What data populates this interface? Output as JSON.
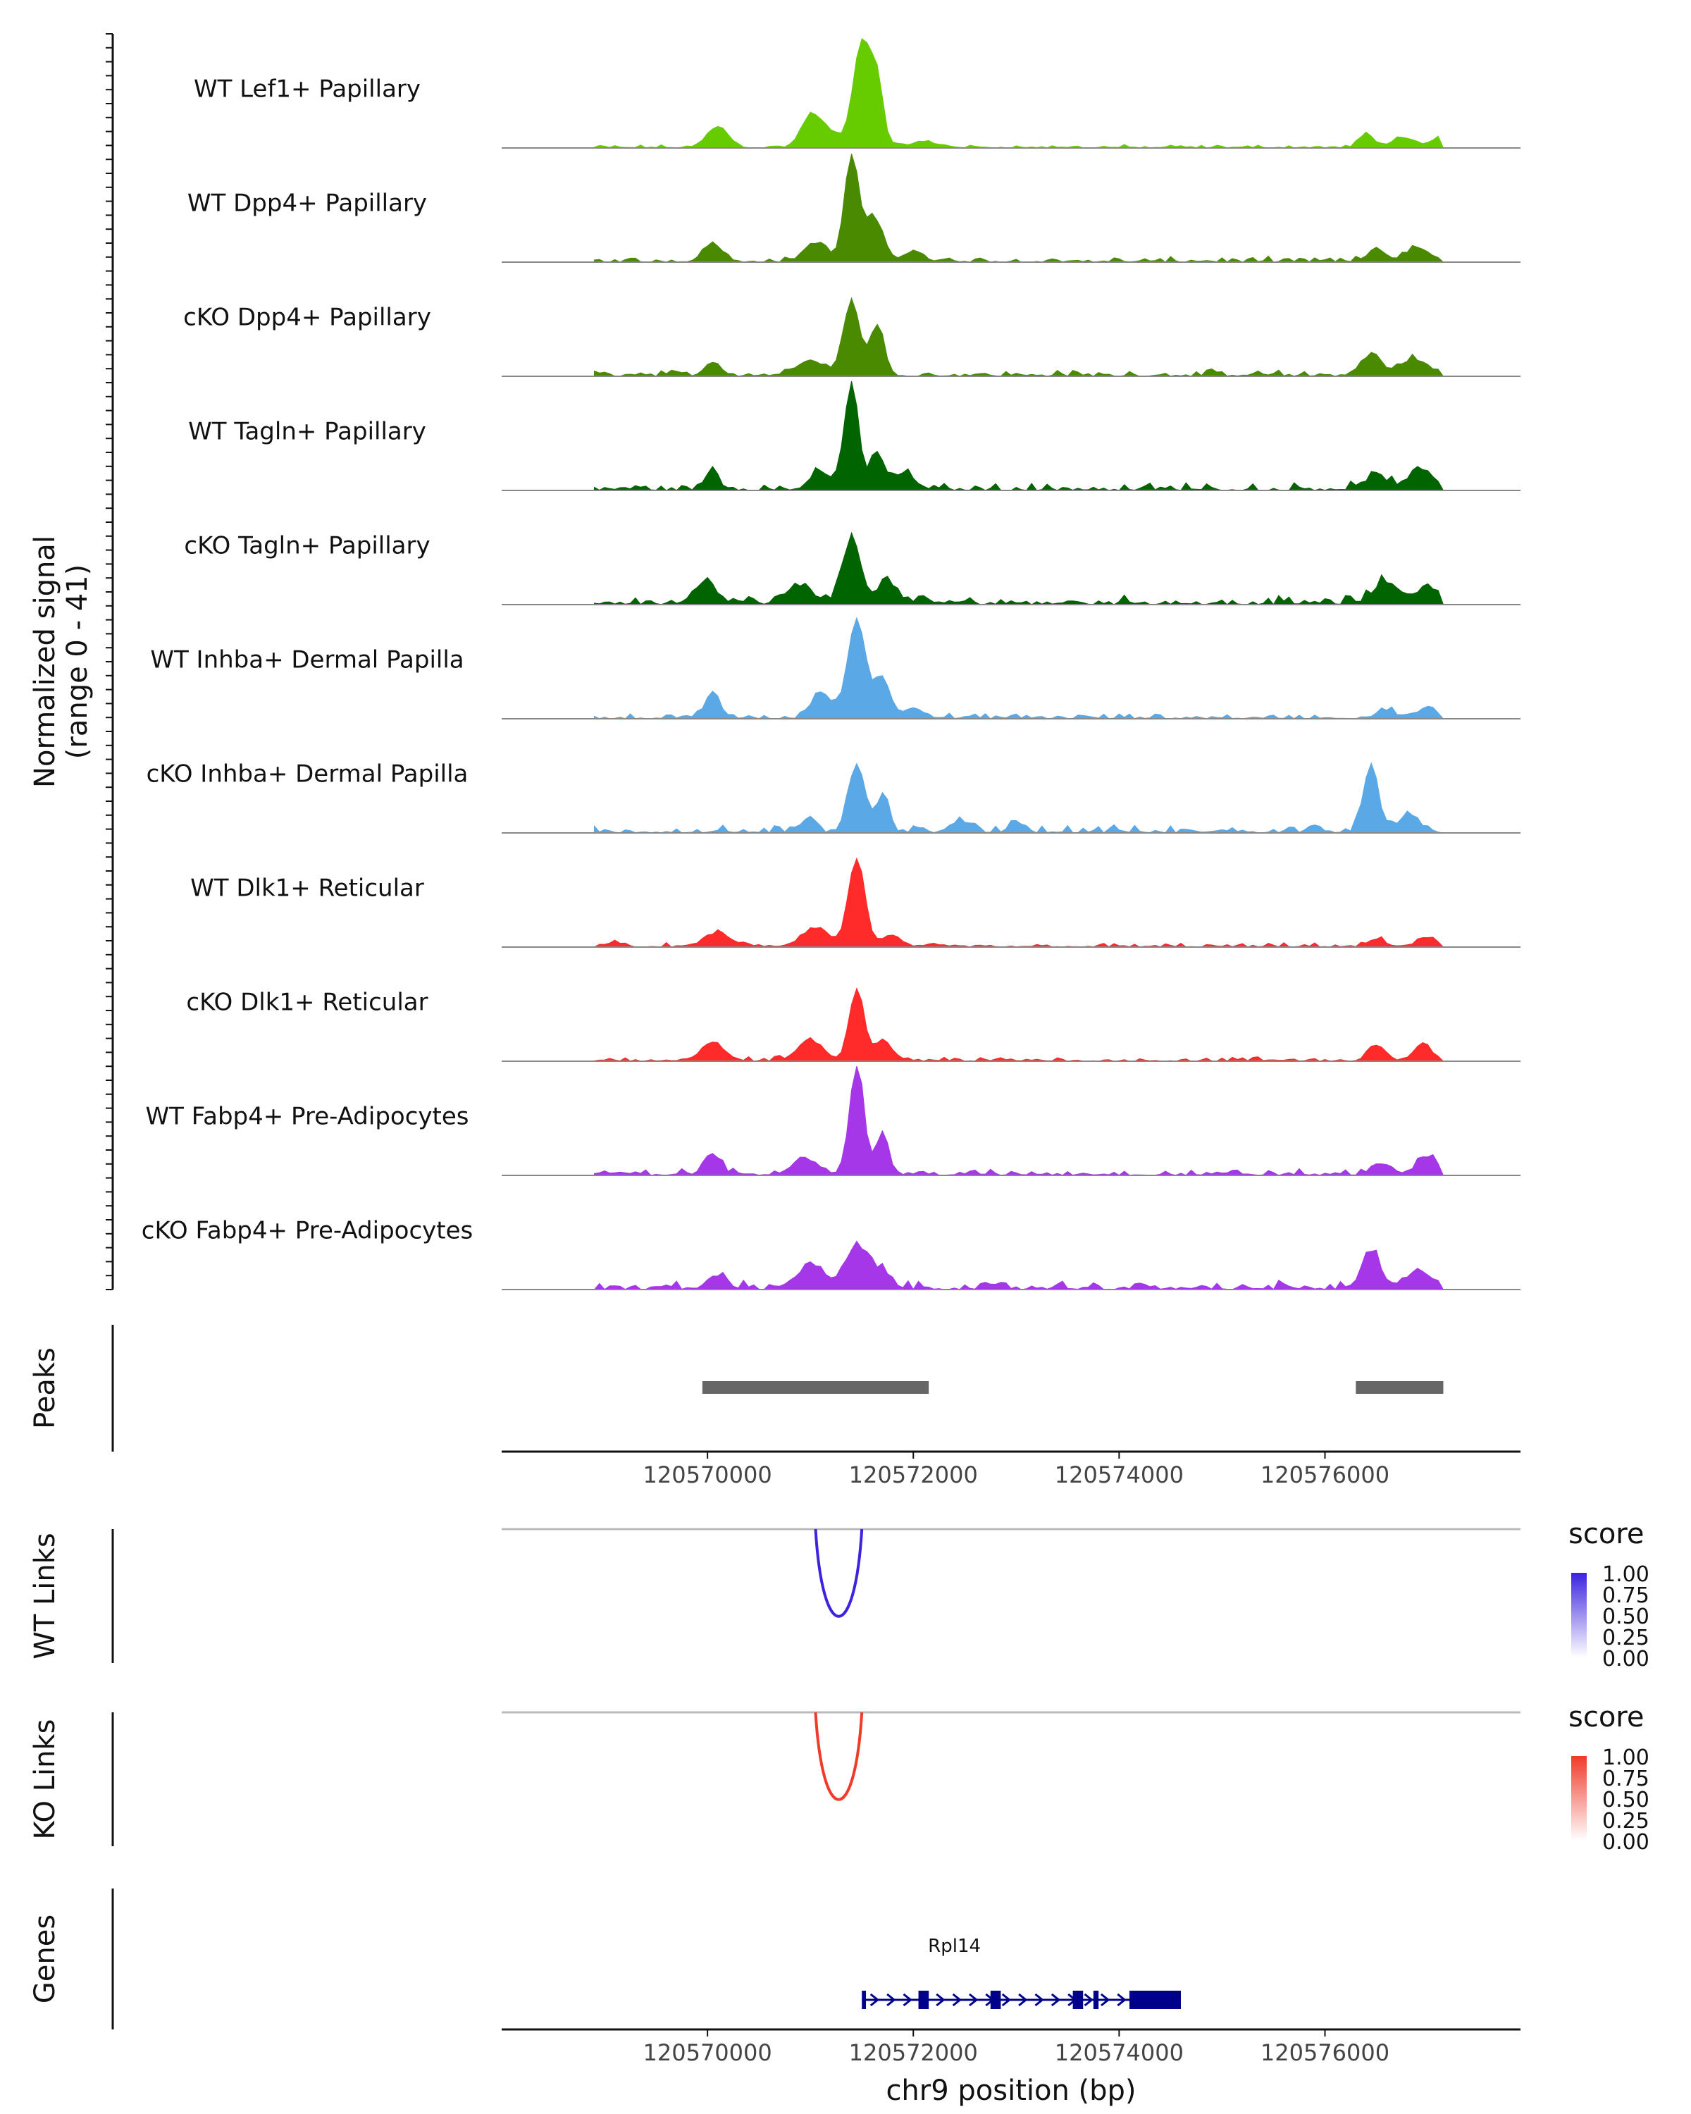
{
  "chart_data": {
    "type": "area",
    "region": "chr9",
    "xlim": [
      120568000,
      120577900
    ],
    "x_ticks": [
      120570000,
      120572000,
      120574000,
      120576000
    ],
    "x_tick_labels": [
      "120570000",
      "120572000",
      "120574000",
      "120576000"
    ],
    "xlabel": "chr9 position (bp)",
    "coverage": {
      "ylabel_line1": "Normalized signal",
      "ylabel_line2": "(range 0 - 41)",
      "ylim": [
        0,
        41
      ],
      "x_start": 120568000,
      "x_step": 50,
      "tracks": [
        {
          "name": "WT Lef1+ Papillary",
          "color": "#66cc00",
          "peaks": [
            [
              120570100,
              8,
              100
            ],
            [
              120571000,
              9,
              90
            ],
            [
              120571150,
              6,
              150
            ],
            [
              120571500,
              40,
              80
            ],
            [
              120571650,
              24,
              60
            ],
            [
              120572100,
              2,
              150
            ],
            [
              120576400,
              5,
              70
            ],
            [
              120576750,
              4,
              100
            ],
            [
              120577100,
              4,
              60
            ]
          ],
          "noise": 0.5
        },
        {
          "name": "WT Dpp4+ Papillary",
          "color": "#4a8a00",
          "peaks": [
            [
              120570050,
              7,
              90
            ],
            [
              120571050,
              7,
              110
            ],
            [
              120571400,
              39,
              70
            ],
            [
              120571620,
              16,
              90
            ],
            [
              120572000,
              4,
              90
            ],
            [
              120576500,
              5,
              80
            ],
            [
              120576900,
              5,
              120
            ]
          ],
          "noise": 0.8
        },
        {
          "name": "cKO Dpp4+ Papillary",
          "color": "#4a8a00",
          "peaks": [
            [
              120570050,
              5,
              80
            ],
            [
              120571000,
              6,
              130
            ],
            [
              120571400,
              28,
              80
            ],
            [
              120571650,
              18,
              70
            ],
            [
              120576450,
              8,
              90
            ],
            [
              120576850,
              6,
              140
            ]
          ],
          "noise": 1.0
        },
        {
          "name": "WT Tagln+ Papillary",
          "color": "#006400",
          "peaks": [
            [
              120570050,
              8,
              60
            ],
            [
              120571100,
              6,
              100
            ],
            [
              120571400,
              40,
              70
            ],
            [
              120571650,
              14,
              60
            ],
            [
              120571900,
              6,
              110
            ],
            [
              120576500,
              5,
              120
            ],
            [
              120576950,
              7,
              120
            ]
          ],
          "noise": 1.2
        },
        {
          "name": "cKO Tagln+ Papillary",
          "color": "#006400",
          "peaks": [
            [
              120569980,
              8,
              110
            ],
            [
              120570900,
              6,
              130
            ],
            [
              120571400,
              24,
              90
            ],
            [
              120571750,
              8,
              100
            ],
            [
              120576600,
              8,
              130
            ],
            [
              120577000,
              6,
              110
            ]
          ],
          "noise": 1.4
        },
        {
          "name": "WT Inhba+ Dermal Papilla",
          "color": "#5aa9e6",
          "peaks": [
            [
              120570050,
              10,
              70
            ],
            [
              120571100,
              10,
              90
            ],
            [
              120571450,
              37,
              90
            ],
            [
              120571700,
              15,
              70
            ],
            [
              120572000,
              4,
              100
            ],
            [
              120576600,
              3,
              90
            ],
            [
              120577000,
              4,
              80
            ]
          ],
          "noise": 0.8
        },
        {
          "name": "cKO Inhba+ Dermal Papilla",
          "color": "#5aa9e6",
          "peaks": [
            [
              120571000,
              6,
              60
            ],
            [
              120571450,
              26,
              80
            ],
            [
              120571700,
              14,
              60
            ],
            [
              120572500,
              4,
              80
            ],
            [
              120573000,
              4,
              70
            ],
            [
              120575900,
              3,
              60
            ],
            [
              120576450,
              26,
              70
            ],
            [
              120576800,
              6,
              90
            ]
          ],
          "noise": 1.2
        },
        {
          "name": "WT Dlk1+ Reticular",
          "color": "#ff2a2a",
          "peaks": [
            [
              120569100,
              2,
              60
            ],
            [
              120570100,
              5,
              130
            ],
            [
              120571050,
              7,
              130
            ],
            [
              120571450,
              33,
              80
            ],
            [
              120571800,
              4,
              90
            ],
            [
              120576500,
              3,
              70
            ],
            [
              120577000,
              3,
              110
            ]
          ],
          "noise": 0.6
        },
        {
          "name": "cKO Dlk1+ Reticular",
          "color": "#ff2a2a",
          "peaks": [
            [
              120570050,
              7,
              110
            ],
            [
              120571000,
              7,
              130
            ],
            [
              120571450,
              27,
              70
            ],
            [
              120571700,
              7,
              90
            ],
            [
              120576500,
              6,
              80
            ],
            [
              120576950,
              6,
              90
            ]
          ],
          "noise": 0.7
        },
        {
          "name": "WT Fabp4+ Pre-Adipocytes",
          "color": "#a637e8",
          "peaks": [
            [
              120570050,
              8,
              80
            ],
            [
              120570950,
              6,
              130
            ],
            [
              120571450,
              41,
              70
            ],
            [
              120571700,
              16,
              60
            ],
            [
              120576550,
              4,
              100
            ],
            [
              120577000,
              6,
              110
            ]
          ],
          "noise": 1.0
        },
        {
          "name": "cKO Fabp4+ Pre-Adipocytes",
          "color": "#a637e8",
          "peaks": [
            [
              120570100,
              5,
              90
            ],
            [
              120571000,
              8,
              140
            ],
            [
              120571450,
              16,
              110
            ],
            [
              120571700,
              6,
              90
            ],
            [
              120576450,
              14,
              90
            ],
            [
              120576900,
              6,
              110
            ]
          ],
          "noise": 1.3
        }
      ]
    },
    "peaks_track": {
      "ylabel": "Peaks",
      "color": "#666666",
      "intervals": [
        [
          120569950,
          120572150
        ],
        [
          120576300,
          120577150
        ]
      ]
    },
    "links": [
      {
        "ylabel": "WT Links",
        "color": "#3b23e0",
        "score": 1.0,
        "start": 120571050,
        "end": 120571500,
        "legend_title": "score",
        "legend_ticks": [
          "1.00",
          "0.75",
          "0.50",
          "0.25",
          "0.00"
        ],
        "gradient": [
          "#3b23e0",
          "#ffffff"
        ]
      },
      {
        "ylabel": "KO Links",
        "color": "#f03a2a",
        "score": 1.0,
        "start": 120571050,
        "end": 120571500,
        "legend_title": "score",
        "legend_ticks": [
          "1.00",
          "0.75",
          "0.50",
          "0.25",
          "0.00"
        ],
        "gradient": [
          "#f03a2a",
          "#ffffff"
        ]
      }
    ],
    "genes": {
      "ylabel": "Genes",
      "gene_name": "Rpl14",
      "color": "#00008b",
      "start": 120571500,
      "end": 120574600,
      "exons": [
        [
          120571500,
          120571540
        ],
        [
          120572050,
          120572150
        ],
        [
          120572750,
          120572850
        ],
        [
          120573550,
          120573650
        ],
        [
          120573750,
          120573800
        ],
        [
          120574100,
          120574600
        ]
      ]
    }
  }
}
